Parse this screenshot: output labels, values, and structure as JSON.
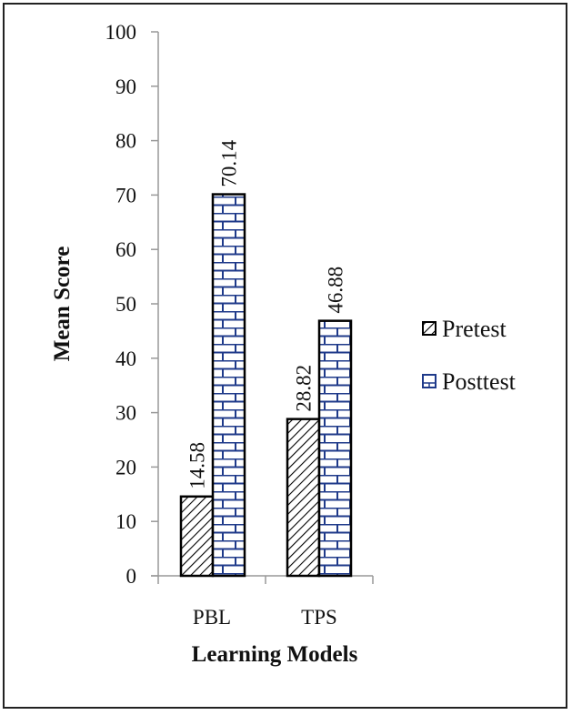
{
  "chart_data": {
    "type": "bar",
    "title": "",
    "xlabel": "Learning Models",
    "ylabel": "Mean Score",
    "categories": [
      "PBL",
      "TPS"
    ],
    "series": [
      {
        "name": "Pretest",
        "values": [
          14.58,
          28.82
        ],
        "pattern": "diagonal-hatch",
        "color": "#000000"
      },
      {
        "name": "Posttest",
        "values": [
          70.14,
          46.88
        ],
        "pattern": "brick",
        "color": "#1f3a8a"
      }
    ],
    "data_labels": {
      "pbl_pretest": "14.58",
      "pbl_posttest": "70.14",
      "tps_pretest": "28.82",
      "tps_posttest": "46.88"
    },
    "ylim": [
      0,
      100
    ],
    "yticks": [
      "0",
      "10",
      "20",
      "30",
      "40",
      "50",
      "60",
      "70",
      "80",
      "90",
      "100"
    ],
    "grid": false,
    "legend_position": "right"
  }
}
